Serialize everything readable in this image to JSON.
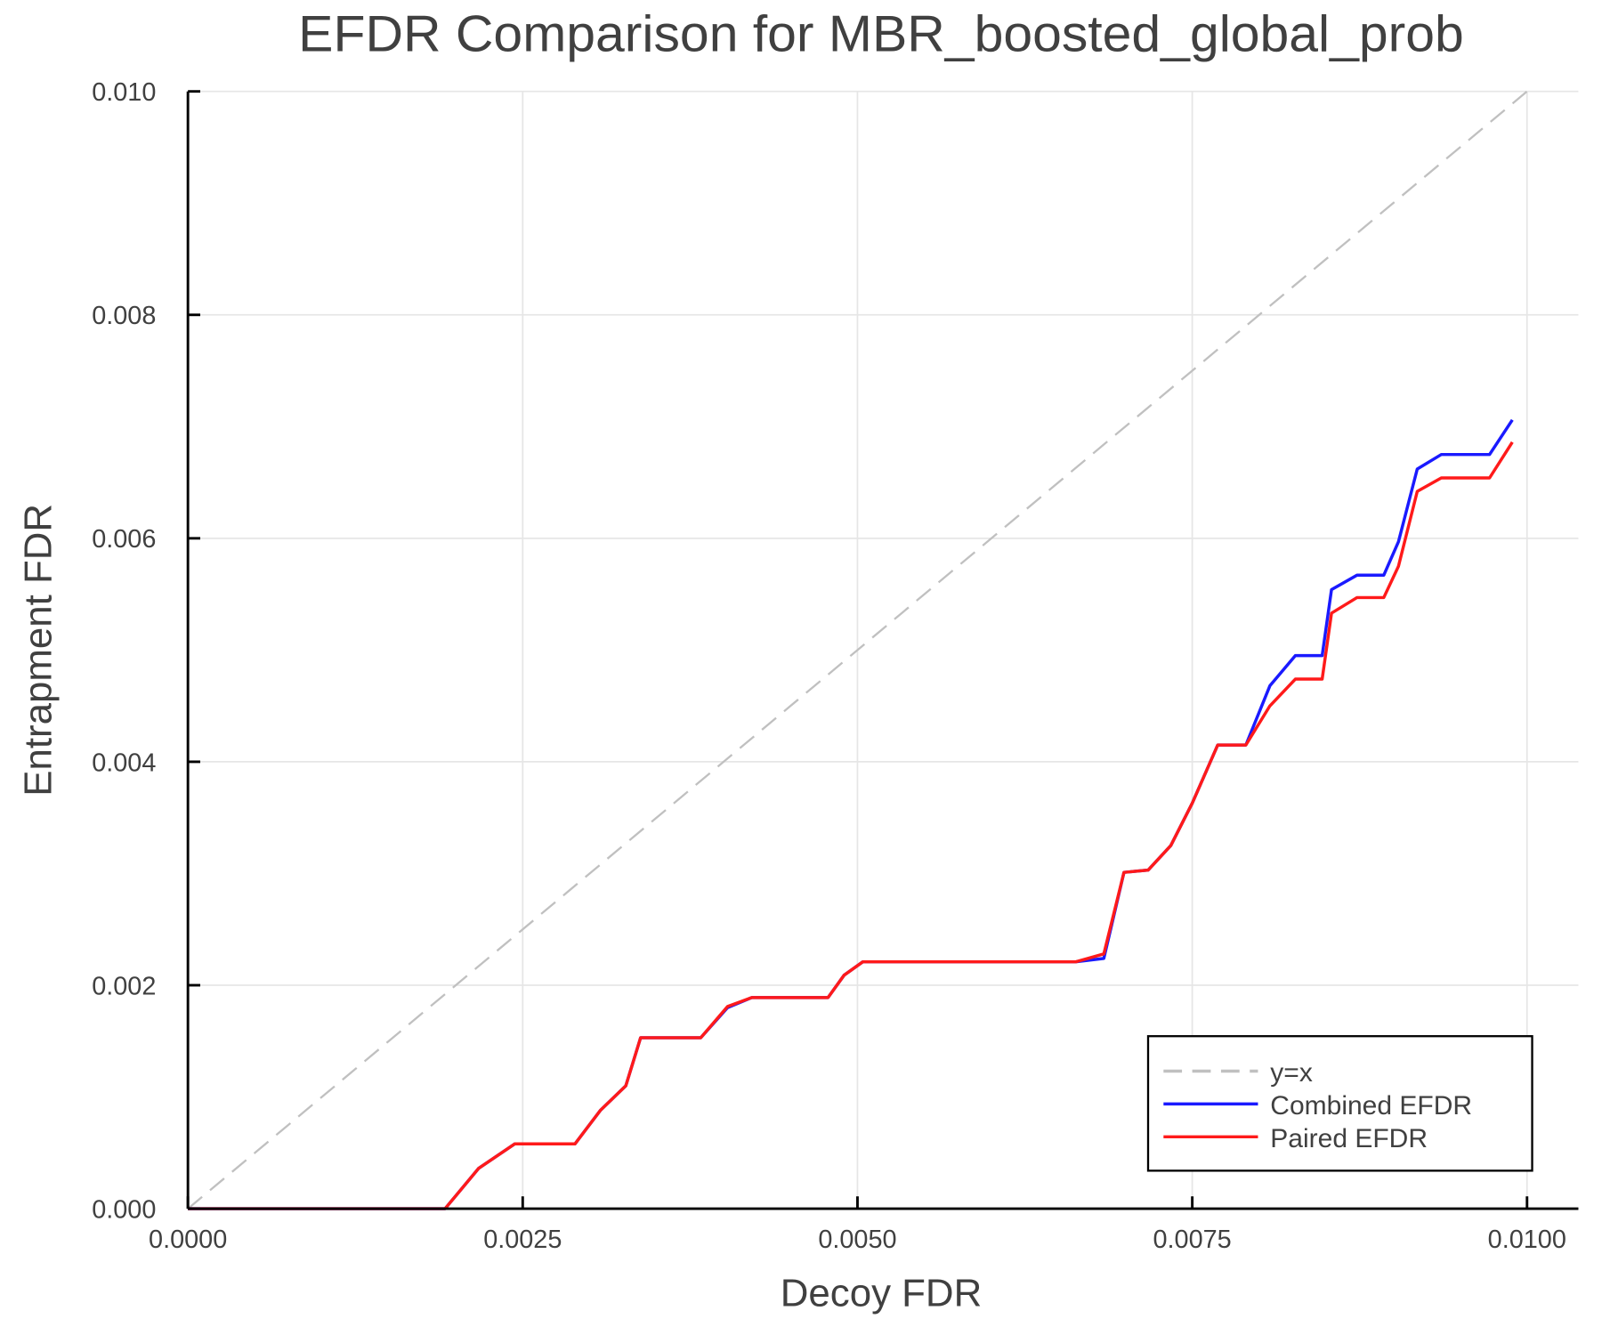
{
  "chart_data": {
    "type": "line",
    "title": "EFDR Comparison for MBR_boosted_global_prob",
    "xlabel": "Decoy FDR",
    "ylabel": "Entrapment FDR",
    "xlim": [
      0,
      0.01
    ],
    "ylim": [
      0,
      0.01
    ],
    "xticks": [
      "0.0000",
      "0.0025",
      "0.0050",
      "0.0075",
      "0.0100"
    ],
    "xtick_values": [
      0,
      0.0025,
      0.005,
      0.0075,
      0.01
    ],
    "yticks": [
      "0.000",
      "0.002",
      "0.004",
      "0.006",
      "0.008",
      "0.010"
    ],
    "ytick_values": [
      0,
      0.002,
      0.004,
      0.006,
      0.008,
      0.01
    ],
    "grid": true,
    "legend_position": "bottom-right",
    "series": [
      {
        "name": "y=x",
        "color": "#c0c0c0",
        "style": "dashed",
        "x": [
          0,
          0.01
        ],
        "y": [
          0,
          0.01
        ]
      },
      {
        "name": "Combined EFDR",
        "color": "#1a1aff",
        "style": "solid",
        "x": [
          0,
          0.00192,
          0.00217,
          0.00244,
          0.00289,
          0.00308,
          0.00327,
          0.00338,
          0.00383,
          0.00403,
          0.00421,
          0.00478,
          0.0049,
          0.00504,
          0.00663,
          0.00684,
          0.00699,
          0.00717,
          0.00734,
          0.0075,
          0.00769,
          0.0079,
          0.00808,
          0.00827,
          0.00847,
          0.00854,
          0.00873,
          0.00893,
          0.00904,
          0.00918,
          0.00936,
          0.00972,
          0.00989
        ],
        "y": [
          0,
          0,
          0.00036,
          0.00058,
          0.00058,
          0.00088,
          0.0011,
          0.00153,
          0.00153,
          0.0018,
          0.00189,
          0.00189,
          0.00209,
          0.00221,
          0.00221,
          0.00224,
          0.00301,
          0.00303,
          0.00325,
          0.00363,
          0.00415,
          0.00415,
          0.00468,
          0.00495,
          0.00495,
          0.00554,
          0.00567,
          0.00567,
          0.00597,
          0.00662,
          0.00675,
          0.00675,
          0.00706
        ]
      },
      {
        "name": "Paired EFDR",
        "color": "#ff1a1a",
        "style": "solid",
        "x": [
          0,
          0.00192,
          0.00217,
          0.00244,
          0.00289,
          0.00308,
          0.00327,
          0.00338,
          0.00383,
          0.00403,
          0.00421,
          0.00478,
          0.0049,
          0.00504,
          0.00663,
          0.00684,
          0.00699,
          0.00717,
          0.00734,
          0.0075,
          0.00769,
          0.0079,
          0.00808,
          0.00827,
          0.00847,
          0.00854,
          0.00873,
          0.00893,
          0.00904,
          0.00918,
          0.00936,
          0.00972,
          0.00989
        ],
        "y": [
          0,
          0,
          0.00036,
          0.00058,
          0.00058,
          0.00088,
          0.0011,
          0.00153,
          0.00153,
          0.00181,
          0.00189,
          0.00189,
          0.00209,
          0.00221,
          0.00221,
          0.00228,
          0.00301,
          0.00303,
          0.00325,
          0.00363,
          0.00415,
          0.00415,
          0.0045,
          0.00474,
          0.00474,
          0.00533,
          0.00547,
          0.00547,
          0.00575,
          0.00642,
          0.00654,
          0.00654,
          0.00686
        ]
      }
    ]
  }
}
